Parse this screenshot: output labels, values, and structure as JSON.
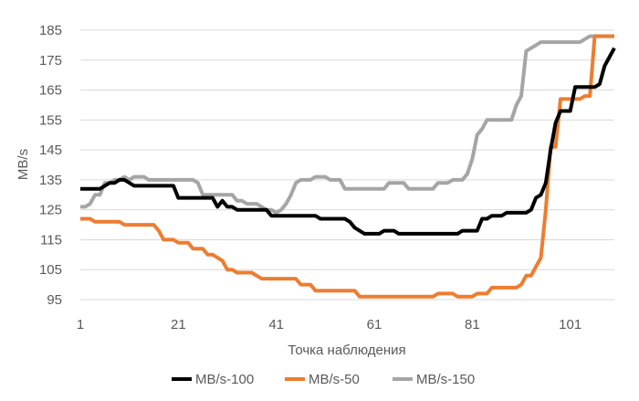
{
  "chart_data": {
    "type": "line",
    "title": "",
    "xlabel": "Точка наблюдения",
    "ylabel": "MB/s",
    "xlim": [
      1,
      110
    ],
    "ylim": [
      95,
      185
    ],
    "x_ticks": [
      "1",
      "21",
      "41",
      "61",
      "81",
      "101"
    ],
    "y_ticks": [
      "95",
      "105",
      "115",
      "125",
      "135",
      "145",
      "155",
      "165",
      "175",
      "185"
    ],
    "grid": "horizontal",
    "legend_position": "bottom",
    "series": [
      {
        "name": "MB/s-100",
        "color": "#000000",
        "values": [
          132,
          132,
          132,
          132,
          132,
          133,
          134,
          134,
          135,
          135,
          134,
          133,
          133,
          133,
          133,
          133,
          133,
          133,
          133,
          133,
          129,
          129,
          129,
          129,
          129,
          129,
          129,
          129,
          126,
          128,
          126,
          126,
          125,
          125,
          125,
          125,
          125,
          125,
          125,
          123,
          123,
          123,
          123,
          123,
          123,
          123,
          123,
          123,
          123,
          122,
          122,
          122,
          122,
          122,
          122,
          121,
          119,
          118,
          117,
          117,
          117,
          117,
          118,
          118,
          118,
          117,
          117,
          117,
          117,
          117,
          117,
          117,
          117,
          117,
          117,
          117,
          117,
          117,
          118,
          118,
          118,
          118,
          122,
          122,
          123,
          123,
          123,
          124,
          124,
          124,
          124,
          124,
          125,
          129,
          130,
          134,
          145,
          154,
          158,
          158,
          158,
          166,
          166,
          166,
          166,
          166,
          167,
          173,
          176,
          179
        ]
      },
      {
        "name": "MB/s-50",
        "color": "#ED7D31",
        "values": [
          122,
          122,
          122,
          121,
          121,
          121,
          121,
          121,
          121,
          120,
          120,
          120,
          120,
          120,
          120,
          120,
          118,
          115,
          115,
          115,
          114,
          114,
          114,
          112,
          112,
          112,
          110,
          110,
          109,
          108,
          105,
          105,
          104,
          104,
          104,
          104,
          103,
          102,
          102,
          102,
          102,
          102,
          102,
          102,
          102,
          100,
          100,
          100,
          98,
          98,
          98,
          98,
          98,
          98,
          98,
          98,
          98,
          96,
          96,
          96,
          96,
          96,
          96,
          96,
          96,
          96,
          96,
          96,
          96,
          96,
          96,
          96,
          96,
          97,
          97,
          97,
          97,
          96,
          96,
          96,
          96,
          97,
          97,
          97,
          99,
          99,
          99,
          99,
          99,
          99,
          100,
          103,
          103,
          106,
          109,
          125,
          146,
          146,
          162,
          162,
          162,
          162,
          162,
          163,
          163,
          183,
          183,
          183,
          183,
          183
        ]
      },
      {
        "name": "MB/s-150",
        "color": "#A5A5A5",
        "values": [
          126,
          126,
          127,
          130,
          130,
          134,
          134,
          135,
          135,
          136,
          135,
          136,
          136,
          136,
          135,
          135,
          135,
          135,
          135,
          135,
          135,
          135,
          135,
          135,
          134,
          130,
          130,
          130,
          130,
          130,
          130,
          130,
          128,
          128,
          127,
          127,
          127,
          126,
          125,
          125,
          124,
          125,
          127,
          130,
          134,
          135,
          135,
          135,
          136,
          136,
          136,
          135,
          135,
          135,
          132,
          132,
          132,
          132,
          132,
          132,
          132,
          132,
          132,
          134,
          134,
          134,
          134,
          132,
          132,
          132,
          132,
          132,
          132,
          134,
          134,
          134,
          135,
          135,
          135,
          137,
          142,
          150,
          152,
          155,
          155,
          155,
          155,
          155,
          155,
          160,
          163,
          178,
          179,
          180,
          181,
          181,
          181,
          181,
          181,
          181,
          181,
          181,
          181,
          182,
          183,
          183,
          183,
          183,
          183,
          183
        ]
      }
    ]
  }
}
